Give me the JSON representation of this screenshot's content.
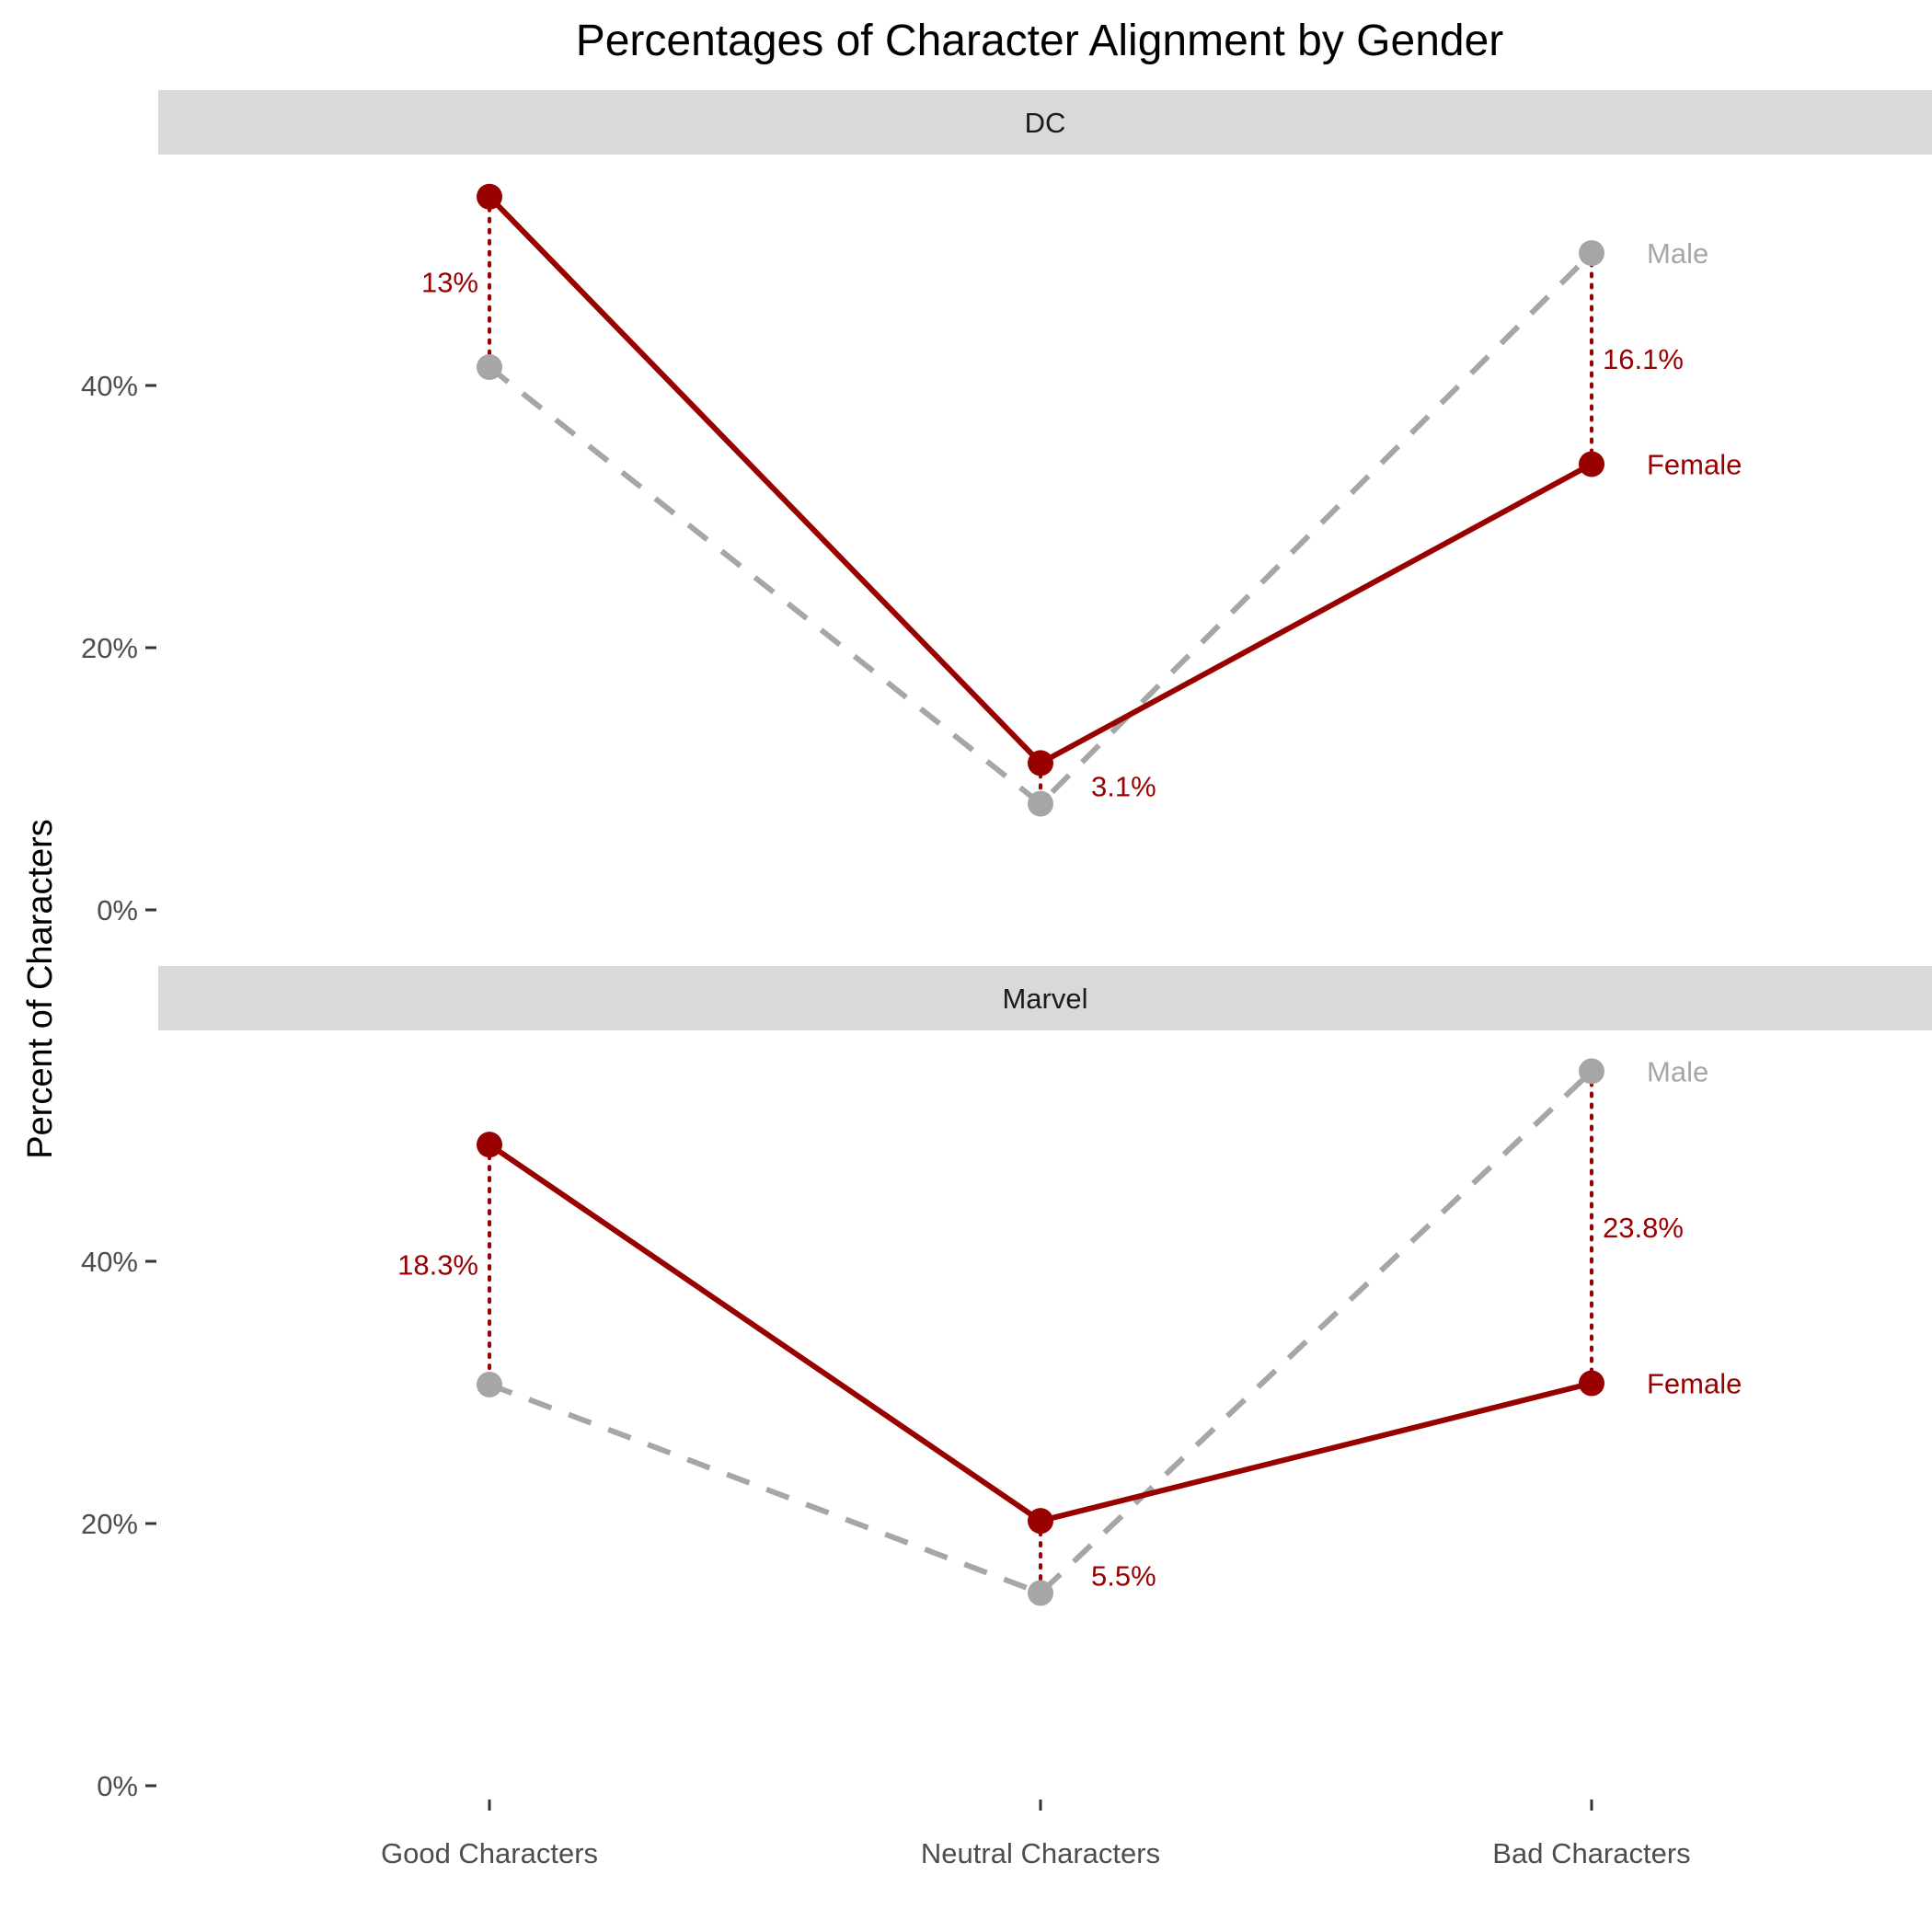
{
  "chart_data": {
    "type": "line",
    "title": "Percentages of Character Alignment by Gender",
    "ylabel": "Percent of Characters",
    "xlabel": "",
    "categories": [
      "Good Characters",
      "Neutral Characters",
      "Bad Characters"
    ],
    "y_ticks": [
      0,
      20,
      40
    ],
    "y_tick_labels": [
      "0%",
      "20%",
      "40%"
    ],
    "grid": false,
    "colors": {
      "female": "#990000",
      "male": "#a6a6a6",
      "strip": "#d9d9d9"
    },
    "panels": [
      {
        "strip_label": "DC",
        "ylim": [
          0,
          56
        ],
        "series": [
          {
            "name": "Female",
            "values": [
              54.4,
              11.2,
              34.0
            ]
          },
          {
            "name": "Male",
            "values": [
              41.4,
              8.1,
              50.1
            ]
          }
        ],
        "differences": [
          "13%",
          "3.1%",
          "16.1%"
        ]
      },
      {
        "strip_label": "Marvel",
        "ylim": [
          0,
          56
        ],
        "series": [
          {
            "name": "Female",
            "values": [
              48.9,
              20.2,
              30.7
            ]
          },
          {
            "name": "Male",
            "values": [
              30.6,
              14.7,
              54.5
            ]
          }
        ],
        "differences": [
          "18.3%",
          "5.5%",
          "23.8%"
        ]
      }
    ]
  }
}
